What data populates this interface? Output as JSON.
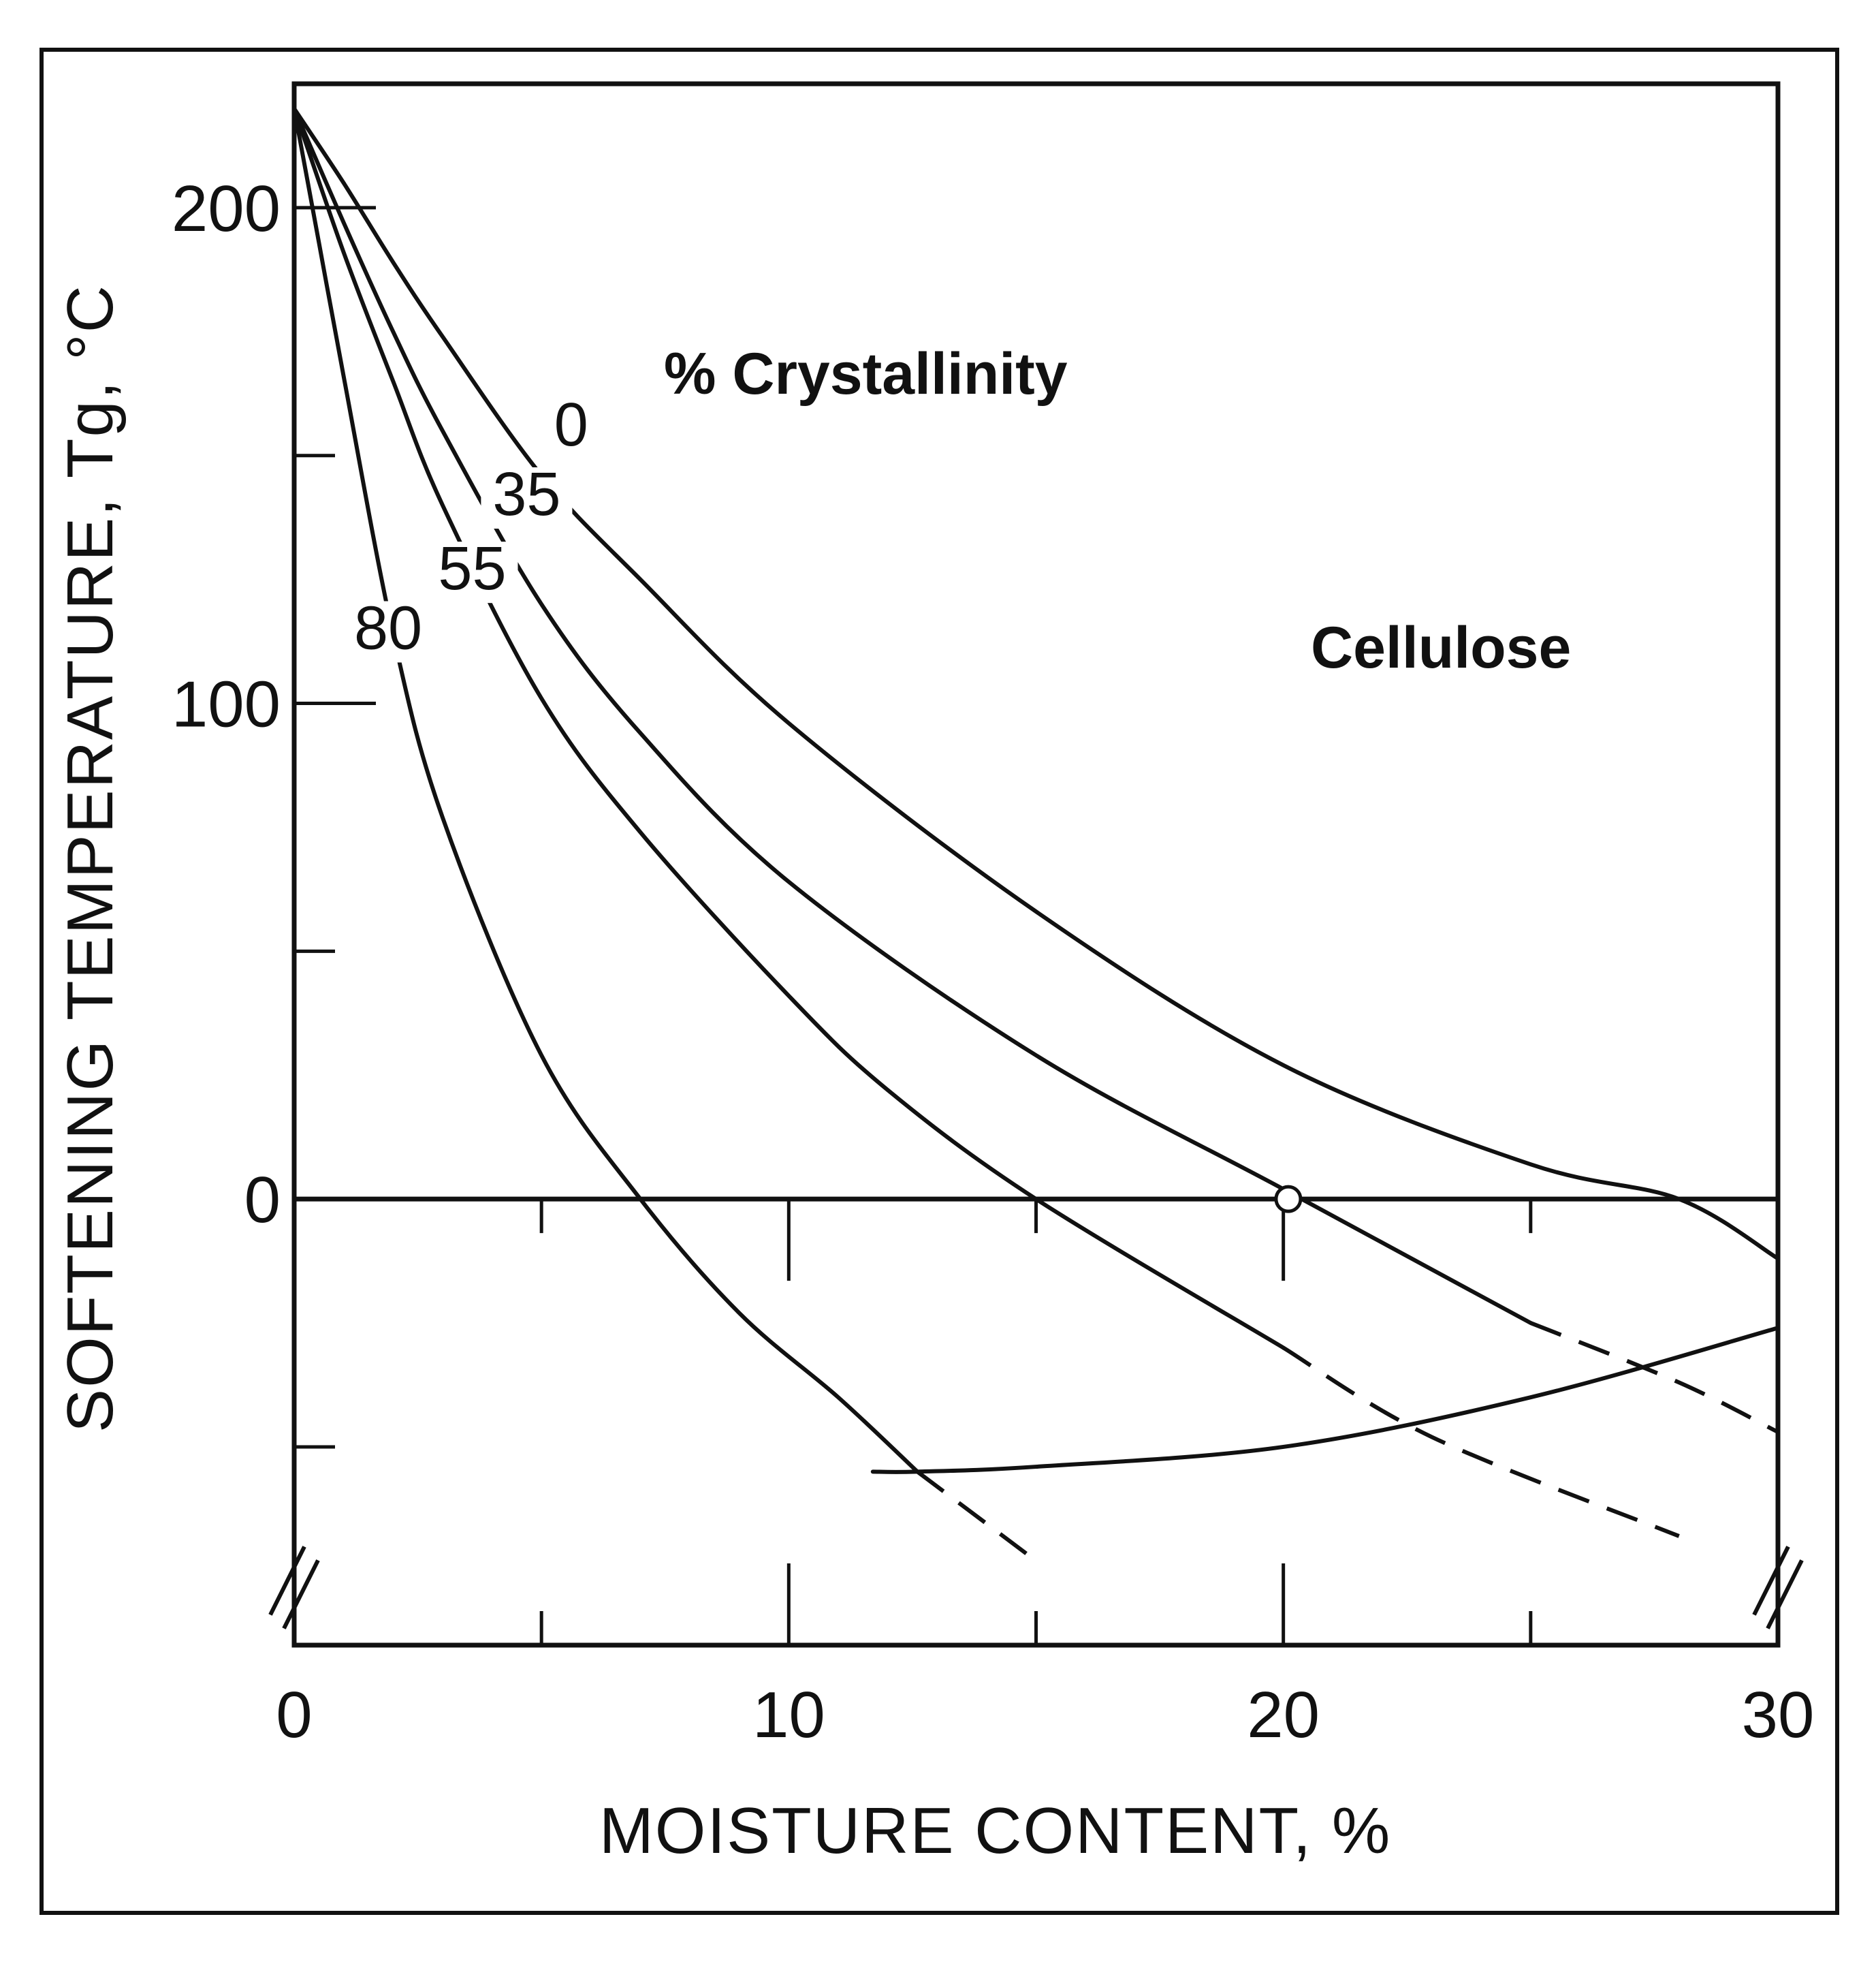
{
  "chart_data": {
    "type": "line",
    "title": "",
    "xlabel": "MOISTURE CONTENT, %",
    "ylabel": "SOFTENING TEMPERATURE, Tg, °C",
    "xlim": [
      0,
      30
    ],
    "ylim": [
      -90,
      225
    ],
    "x_ticks": [
      0,
      10,
      20,
      30
    ],
    "y_ticks": [
      0,
      100,
      200
    ],
    "grid": false,
    "legend": "none",
    "annotations": [
      "% Crystallinity",
      "Cellulose"
    ],
    "series": [
      {
        "name": "0",
        "x": [
          0,
          1,
          2,
          3,
          5,
          7,
          10,
          15,
          20,
          25,
          28,
          30
        ],
        "y": [
          220,
          205,
          189,
          174,
          146,
          125,
          96,
          58,
          27,
          7,
          0,
          -12
        ]
      },
      {
        "name": "35",
        "x": [
          0,
          1,
          2,
          3,
          5,
          7,
          10,
          15,
          20,
          25,
          28,
          30
        ],
        "y": [
          220,
          197,
          175,
          155,
          120,
          94,
          64,
          29,
          2,
          -25,
          -37,
          -47
        ]
      },
      {
        "name": "55",
        "x": [
          0,
          1,
          2,
          3,
          5,
          7,
          10,
          12,
          15,
          20,
          23,
          28
        ],
        "y": [
          220,
          191,
          165,
          140,
          101,
          74,
          41,
          22,
          0,
          -30,
          -48,
          -68
        ]
      },
      {
        "name": "80",
        "x": [
          0,
          0.5,
          1,
          2,
          3,
          5,
          7,
          9,
          11,
          12.6,
          15
        ],
        "y": [
          220,
          193,
          166,
          114,
          77,
          29,
          0,
          -23,
          -40,
          -55,
          -73
        ]
      },
      {
        "name": "",
        "x": [
          11.7,
          12.6,
          15,
          20,
          25,
          30
        ],
        "y": [
          -55,
          -55,
          -54,
          -50,
          -40,
          -26
        ]
      }
    ]
  }
}
